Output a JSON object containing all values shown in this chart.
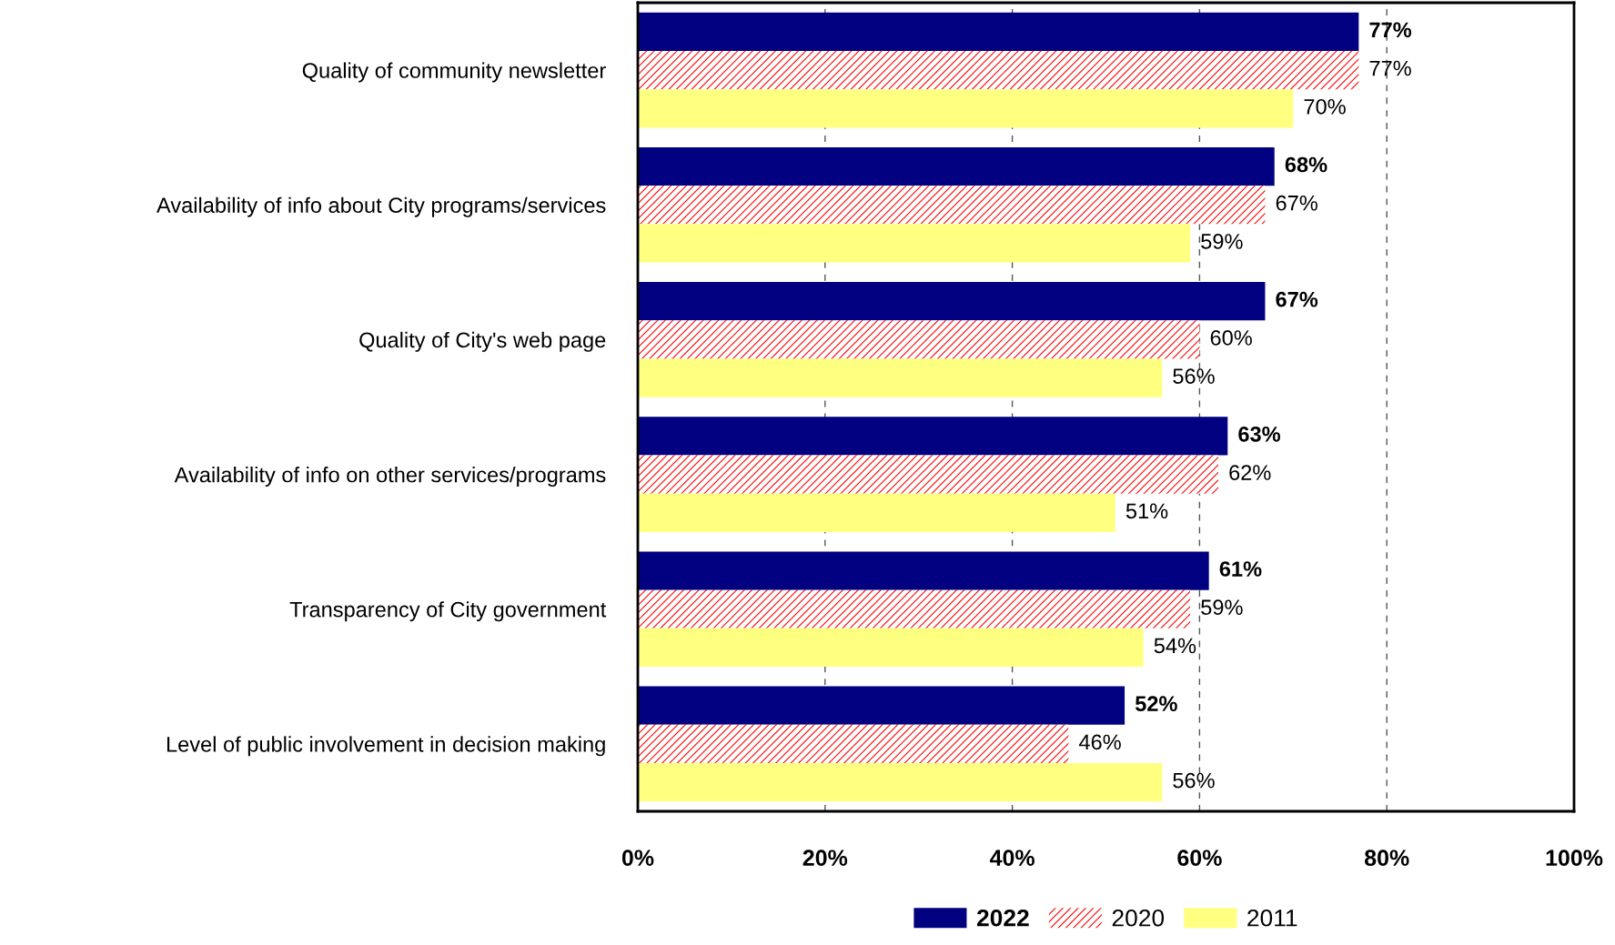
{
  "chart_data": {
    "type": "bar",
    "orientation": "horizontal",
    "categories": [
      "Quality of community newsletter",
      "Availability of info about City programs/services",
      "Quality of City's web page",
      "Availability of info on other services/programs",
      "Transparency of City government",
      "Level of public involvement in decision making"
    ],
    "series": [
      {
        "name": "2022",
        "color": "#000080",
        "values": [
          77,
          68,
          67,
          63,
          61,
          52
        ],
        "value_labels": [
          "77%",
          "68%",
          "67%",
          "63%",
          "61%",
          "52%"
        ]
      },
      {
        "name": "2020",
        "color": "#ff0000",
        "values": [
          77,
          67,
          60,
          62,
          59,
          46
        ],
        "value_labels": [
          "77%",
          "67%",
          "60%",
          "62%",
          "59%",
          "46%"
        ]
      },
      {
        "name": "2011",
        "color": "#ffff80",
        "values": [
          70,
          59,
          56,
          51,
          54,
          56
        ],
        "value_labels": [
          "70%",
          "59%",
          "56%",
          "51%",
          "54%",
          "56%"
        ]
      }
    ],
    "xlim": [
      0,
      100
    ],
    "xticks": [
      {
        "value": 0,
        "label": "0%"
      },
      {
        "value": 20,
        "label": "20%"
      },
      {
        "value": 40,
        "label": "40%"
      },
      {
        "value": 60,
        "label": "60%"
      },
      {
        "value": 80,
        "label": "80%"
      },
      {
        "value": 100,
        "label": "100%"
      }
    ],
    "grid": "x",
    "legend": "bottom"
  }
}
